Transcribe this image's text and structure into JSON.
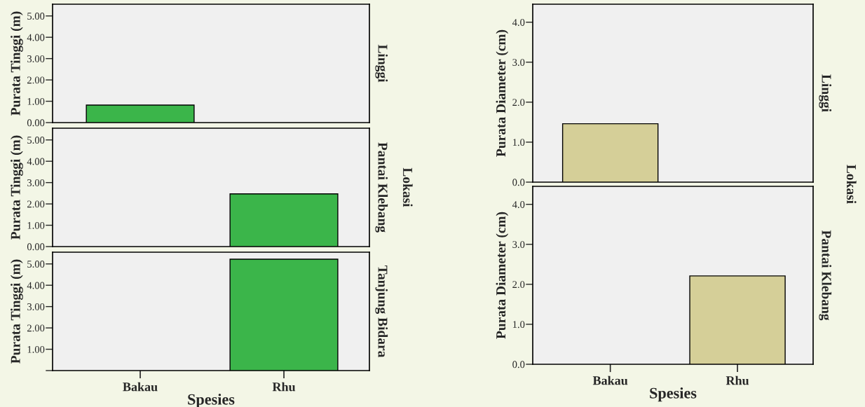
{
  "chart_data": [
    {
      "type": "bar",
      "title": "Linggi",
      "ylabel": "Purata Tinggi (m)",
      "categories": [
        null,
        null
      ],
      "values": [
        0.82,
        null
      ],
      "color": "#3bb54a",
      "ylim": [
        0,
        5.55
      ],
      "yticks": [
        {
          "value": 0,
          "label": "0.00"
        },
        {
          "value": 1,
          "label": "1.00"
        },
        {
          "value": 2,
          "label": "2.00"
        },
        {
          "value": 3,
          "label": "3.00"
        },
        {
          "value": 4,
          "label": "4.00"
        },
        {
          "value": 5,
          "label": "5.00"
        }
      ],
      "tick_labels": "y",
      "grid": false,
      "legend": false
    },
    {
      "type": "bar",
      "title": "Pantai Klebang",
      "ylabel": "Purata Tinggi (m)",
      "categories": [
        null,
        null
      ],
      "values": [
        null,
        2.47
      ],
      "color": "#3bb54a",
      "ylim": [
        0,
        5.55
      ],
      "yticks": [
        {
          "value": 0,
          "label": "0.00"
        },
        {
          "value": 1,
          "label": "1.00"
        },
        {
          "value": 2,
          "label": "2.00"
        },
        {
          "value": 3,
          "label": "3.00"
        },
        {
          "value": 4,
          "label": "4.00"
        },
        {
          "value": 5,
          "label": "5.00"
        }
      ],
      "tick_labels": "y",
      "annotations": [
        "Lokasi"
      ],
      "grid": false,
      "legend": false
    },
    {
      "type": "bar",
      "title": "Tanjung Bidara",
      "ylabel": "Purata Tinggi (m)",
      "xlabel": "Spesies",
      "categories": [
        "Bakau",
        "Rhu"
      ],
      "values": [
        null,
        5.22
      ],
      "color": "#3bb54a",
      "ylim": [
        0,
        5.55
      ],
      "yticks": [
        {
          "value": 0,
          "label": null
        },
        {
          "value": 1,
          "label": "1.00"
        },
        {
          "value": 2,
          "label": "2.00"
        },
        {
          "value": 3,
          "label": "3.00"
        },
        {
          "value": 4,
          "label": "4.00"
        },
        {
          "value": 5,
          "label": "5.00"
        }
      ],
      "grid": false,
      "legend": false
    },
    {
      "type": "bar",
      "title": "Linggi",
      "ylabel": "Purata Diameter (cm)",
      "categories": [
        null,
        null
      ],
      "values": [
        1.46,
        null
      ],
      "color": "#d5cf98",
      "ylim": [
        0,
        4.45
      ],
      "yticks": [
        {
          "value": 0,
          "label": "0.0"
        },
        {
          "value": 1,
          "label": "1.0"
        },
        {
          "value": 2,
          "label": "2.0"
        },
        {
          "value": 3,
          "label": "3.0"
        },
        {
          "value": 4,
          "label": "4.0"
        }
      ],
      "tick_labels": "y",
      "annotations": [
        "Lokasi"
      ],
      "grid": false,
      "legend": false
    },
    {
      "type": "bar",
      "title": "Pantai Klebang",
      "ylabel": "Purata Diameter (cm)",
      "xlabel": "Spesies",
      "categories": [
        "Bakau",
        "Rhu"
      ],
      "values": [
        null,
        2.21
      ],
      "color": "#d5cf98",
      "ylim": [
        0,
        4.45
      ],
      "yticks": [
        {
          "value": 0,
          "label": "0.0"
        },
        {
          "value": 1,
          "label": "1.0"
        },
        {
          "value": 2,
          "label": "2.0"
        },
        {
          "value": 3,
          "label": "3.0"
        },
        {
          "value": 4,
          "label": "4.0"
        }
      ],
      "grid": false,
      "legend": false
    }
  ]
}
